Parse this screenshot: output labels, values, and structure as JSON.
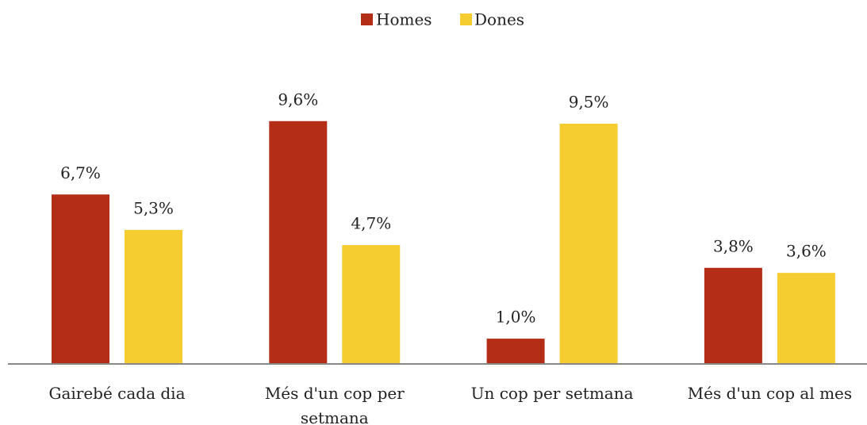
{
  "chart_data": {
    "type": "bar",
    "categories": [
      "Gairebé cada dia",
      "Més d'un cop per setmana",
      "Un cop per setmana",
      "Més d'un cop al mes"
    ],
    "series": [
      {
        "name": "Homes",
        "color": "#b32d17",
        "values": [
          6.7,
          9.6,
          1.0,
          3.8
        ],
        "value_labels": [
          "6,7%",
          "9,6%",
          "1,0%",
          "3,8%"
        ]
      },
      {
        "name": "Dones",
        "color": "#f5cd30",
        "values": [
          5.3,
          4.7,
          9.5,
          3.6
        ],
        "value_labels": [
          "5,3%",
          "4,7%",
          "9,5%",
          "3,6%"
        ]
      }
    ],
    "legend": "top"
  }
}
